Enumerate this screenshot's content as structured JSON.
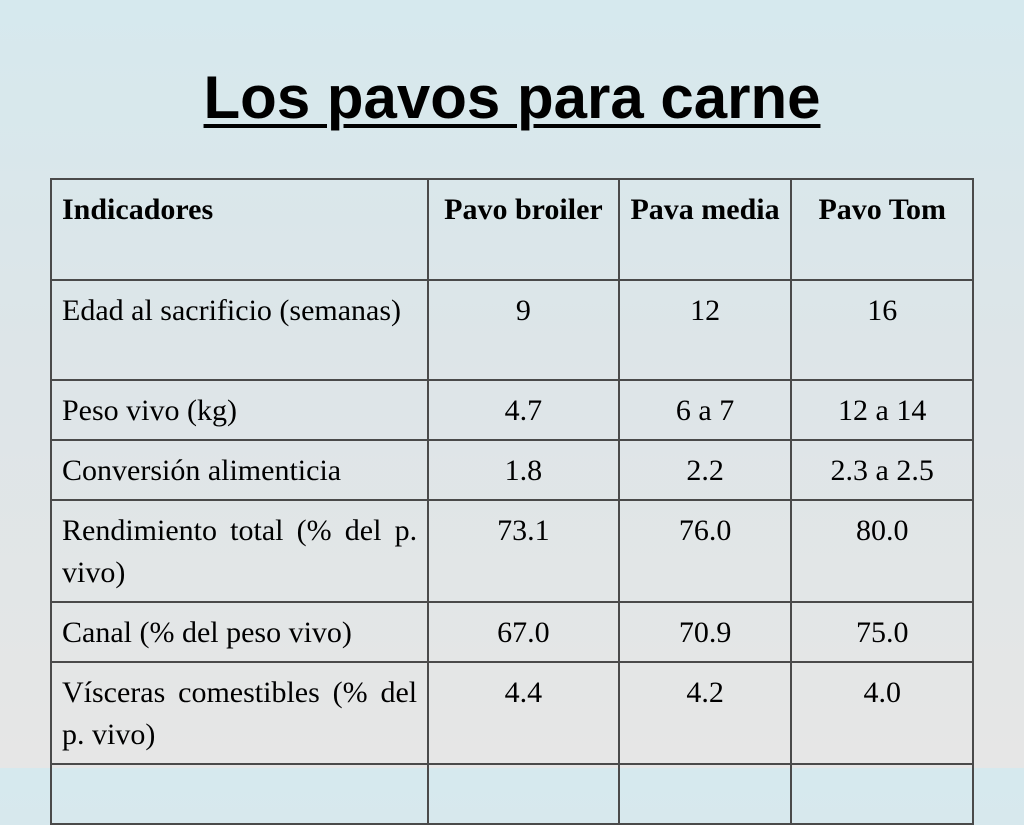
{
  "title": "Los pavos para carne",
  "table": {
    "headers": [
      "Indicadores",
      "Pavo broiler",
      "Pava media",
      "Pavo Tom"
    ],
    "rows": [
      {
        "label": "Edad al sacrificio (semanas)",
        "values": [
          "9",
          "12",
          "16"
        ]
      },
      {
        "label": "Peso vivo (kg)",
        "values": [
          "4.7",
          "6 a 7",
          "12 a 14"
        ]
      },
      {
        "label": "Conversión alimenticia",
        "values": [
          "1.8",
          "2.2",
          "2.3 a 2.5"
        ]
      },
      {
        "label": "Rendimiento total (% del p. vivo)",
        "values": [
          "73.1",
          "76.0",
          "80.0"
        ]
      },
      {
        "label": "Canal (% del peso vivo)",
        "values": [
          "67.0",
          "70.9",
          "75.0"
        ]
      },
      {
        "label": "Vísceras comestibles (% del p. vivo)",
        "values": [
          "4.4",
          "4.2",
          "4.0"
        ]
      }
    ]
  }
}
